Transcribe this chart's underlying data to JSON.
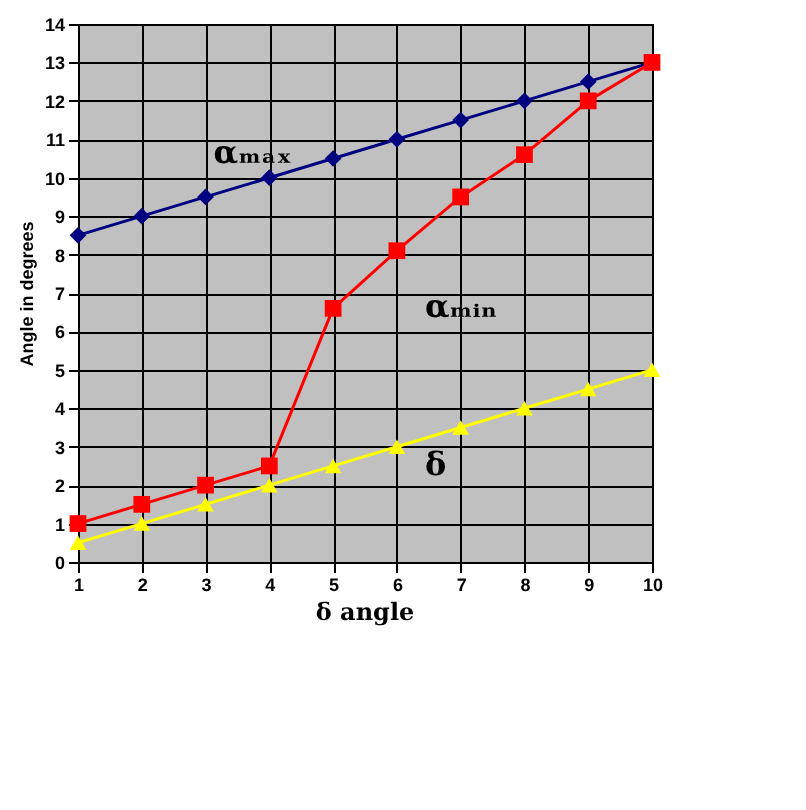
{
  "chart_data": {
    "type": "line",
    "xlabel": "δ angle",
    "ylabel": "Angle in degrees",
    "x": [
      1,
      2,
      3,
      4,
      5,
      6,
      7,
      8,
      9,
      10
    ],
    "xlim": [
      1,
      10
    ],
    "xticks": [
      1,
      2,
      3,
      4,
      5,
      6,
      7,
      8,
      9,
      10
    ],
    "ylim": [
      0,
      14
    ],
    "yticks": [
      0,
      1,
      2,
      3,
      4,
      5,
      6,
      7,
      8,
      9,
      10,
      11,
      12,
      13,
      14
    ],
    "grid": true,
    "line_style": "solid",
    "series": [
      {
        "name": "αₘₐₓ",
        "color": "#000080",
        "marker": "diamond",
        "values": [
          8.5,
          9,
          9.5,
          10,
          10.5,
          11,
          11.5,
          12,
          12.5,
          13
        ]
      },
      {
        "name": "αₘᵢₙ",
        "color": "#ff0000",
        "marker": "square",
        "values": [
          1,
          1.5,
          2,
          2.5,
          6.6,
          8.1,
          9.5,
          10.6,
          12,
          13
        ]
      },
      {
        "name": "δ",
        "color": "#ffff00",
        "marker": "triangle",
        "values": [
          0.5,
          1,
          1.5,
          2,
          2.5,
          3,
          3.5,
          4,
          4.5,
          5
        ]
      }
    ]
  }
}
